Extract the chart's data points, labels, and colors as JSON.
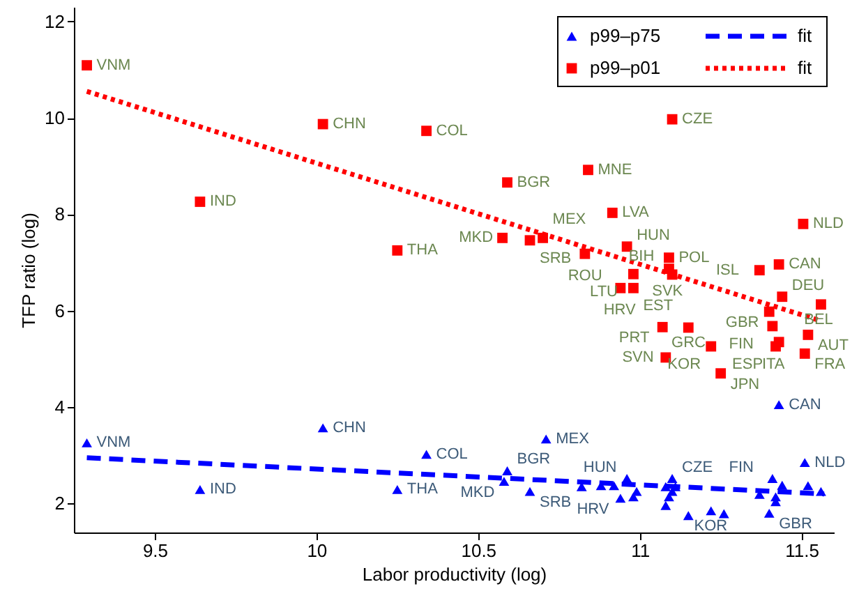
{
  "chart_data": {
    "type": "scatter",
    "xlabel": "Labor productivity (log)",
    "ylabel": "TFP ratio (log)",
    "xlim": [
      9.25,
      11.6
    ],
    "xticks": [
      9.5,
      10,
      10.5,
      11,
      11.5
    ],
    "ylim": [
      1.4,
      12.3
    ],
    "yticks": [
      2,
      4,
      6,
      8,
      10,
      12
    ],
    "grid": false,
    "legend": "top right",
    "series": [
      {
        "name": "p99–p75",
        "marker": "triangle",
        "color": "#0000ff",
        "x": [
          9.29,
          10.02,
          10.34,
          9.64,
          10.25,
          10.71,
          10.59,
          10.58,
          10.66,
          10.82,
          10.88,
          10.92,
          10.96,
          10.94,
          10.98,
          10.99,
          11.1,
          11.08,
          11.09,
          11.1,
          11.08,
          11.15,
          11.11,
          11.22,
          11.26,
          11.37,
          11.4,
          11.41,
          11.44,
          11.42,
          11.42,
          11.51,
          11.52,
          11.56,
          11.43
        ],
        "values": [
          3.26,
          3.57,
          3.02,
          2.29,
          2.29,
          3.34,
          2.68,
          2.46,
          2.25,
          2.35,
          2.37,
          2.37,
          2.52,
          2.11,
          2.14,
          2.25,
          2.52,
          2.35,
          2.14,
          2.25,
          1.96,
          1.75,
          2.35,
          1.85,
          1.79,
          2.19,
          1.8,
          2.52,
          2.38,
          2.14,
          2.04,
          2.85,
          2.37,
          2.25,
          4.05
        ]
      },
      {
        "name": "p99–p01",
        "marker": "square",
        "color": "#ff0000",
        "x": [
          9.29,
          10.02,
          10.34,
          9.64,
          10.25,
          10.59,
          10.84,
          10.915,
          11.505,
          10.575,
          10.66,
          10.7,
          10.83,
          10.96,
          11.09,
          11.09,
          11.1,
          10.98,
          10.94,
          10.98,
          11.37,
          11.43,
          11.44,
          11.56,
          11.4,
          11.41,
          11.52,
          11.43,
          11.42,
          11.51,
          11.07,
          11.15,
          11.22,
          11.08,
          11.25,
          11.1
        ],
        "values": [
          11.09,
          9.87,
          9.73,
          8.26,
          7.25,
          8.66,
          8.92,
          8.03,
          7.8,
          7.51,
          7.46,
          7.51,
          7.18,
          7.33,
          7.1,
          6.87,
          6.75,
          6.76,
          6.47,
          6.47,
          6.84,
          6.96,
          6.29,
          6.13,
          5.98,
          5.68,
          5.5,
          5.35,
          5.26,
          5.11,
          5.66,
          5.65,
          5.26,
          5.03,
          4.7,
          9.97
        ]
      },
      {
        "name": "fit",
        "type": "line",
        "line_style": "dashed",
        "color": "#0000ff",
        "x": [
          9.29,
          11.57
        ],
        "values": [
          2.95,
          2.2
        ]
      },
      {
        "name": "fit",
        "type": "line",
        "line_style": "dotted",
        "color": "#ff0000",
        "x": [
          9.29,
          11.55
        ],
        "values": [
          10.55,
          5.81
        ]
      }
    ],
    "annotations": [
      {
        "text": "VNM",
        "x": 9.29,
        "y": 3.26
      },
      {
        "text": "CHN",
        "x": 10.02,
        "y": 3.57
      },
      {
        "text": "COL",
        "x": 10.34,
        "y": 3.02
      },
      {
        "text": "IND",
        "x": 9.64,
        "y": 2.29
      },
      {
        "text": "THA",
        "x": 10.25,
        "y": 2.29
      },
      {
        "text": "MEX",
        "x": 10.71,
        "y": 3.34
      },
      {
        "text": "CAN",
        "x": 11.43,
        "y": 4.05
      },
      {
        "text": "NLD",
        "x": 11.51,
        "y": 2.85
      },
      {
        "text": "BGR",
        "x": 10.59,
        "y": 2.68
      },
      {
        "text": "MKD",
        "x": 10.58,
        "y": 2.46
      },
      {
        "text": "SRB",
        "x": 10.66,
        "y": 2.25
      },
      {
        "text": "HUN",
        "x": 10.96,
        "y": 2.52
      },
      {
        "text": "CZE",
        "x": 11.1,
        "y": 2.52
      },
      {
        "text": "FIN",
        "x": 11.41,
        "y": 2.52
      },
      {
        "text": "HRV",
        "x": 10.94,
        "y": 2.11
      },
      {
        "text": "KOR",
        "x": 11.22,
        "y": 1.85
      },
      {
        "text": "GBR",
        "x": 11.4,
        "y": 1.8
      },
      {
        "text": "VNM",
        "x": 9.29,
        "y": 11.09
      },
      {
        "text": "CHN",
        "x": 10.02,
        "y": 9.87
      },
      {
        "text": "COL",
        "x": 10.34,
        "y": 9.73
      },
      {
        "text": "IND",
        "x": 9.64,
        "y": 8.26
      },
      {
        "text": "THA",
        "x": 10.25,
        "y": 7.25
      },
      {
        "text": "CZE",
        "x": 11.1,
        "y": 9.97
      },
      {
        "text": "BGR",
        "x": 10.59,
        "y": 8.66
      },
      {
        "text": "MNE",
        "x": 10.84,
        "y": 8.92
      },
      {
        "text": "LVA",
        "x": 10.915,
        "y": 8.03
      },
      {
        "text": "NLD",
        "x": 11.505,
        "y": 7.8
      },
      {
        "text": "MKD",
        "x": 10.575,
        "y": 7.51
      },
      {
        "text": "SRB",
        "x": 10.66,
        "y": 7.46
      },
      {
        "text": "MEX",
        "x": 10.7,
        "y": 7.51
      },
      {
        "text": "ROU",
        "x": 10.83,
        "y": 7.18
      },
      {
        "text": "HUN",
        "x": 10.96,
        "y": 7.33
      },
      {
        "text": "POL",
        "x": 11.09,
        "y": 7.1
      },
      {
        "text": "SVK",
        "x": 11.09,
        "y": 6.87
      },
      {
        "text": "BIH",
        "x": 11.1,
        "y": 6.75
      },
      {
        "text": "LTU",
        "x": 10.98,
        "y": 6.76
      },
      {
        "text": "HRV",
        "x": 10.94,
        "y": 6.47
      },
      {
        "text": "EST",
        "x": 10.98,
        "y": 6.47
      },
      {
        "text": "ISL",
        "x": 11.37,
        "y": 6.84
      },
      {
        "text": "CAN",
        "x": 11.43,
        "y": 6.96
      },
      {
        "text": "DEU",
        "x": 11.44,
        "y": 6.29
      },
      {
        "text": "BEL",
        "x": 11.56,
        "y": 6.13
      },
      {
        "text": "GBR",
        "x": 11.4,
        "y": 5.98
      },
      {
        "text": "FIN",
        "x": 11.41,
        "y": 5.68
      },
      {
        "text": "AUT",
        "x": 11.52,
        "y": 5.5
      },
      {
        "text": "ITA",
        "x": 11.43,
        "y": 5.35
      },
      {
        "text": "ESP",
        "x": 11.42,
        "y": 5.26
      },
      {
        "text": "FRA",
        "x": 11.51,
        "y": 5.11
      },
      {
        "text": "PRT",
        "x": 11.07,
        "y": 5.66
      },
      {
        "text": "GRC",
        "x": 11.15,
        "y": 5.65
      },
      {
        "text": "KOR",
        "x": 11.22,
        "y": 5.26
      },
      {
        "text": "SVN",
        "x": 11.08,
        "y": 5.03
      },
      {
        "text": "JPN",
        "x": 11.25,
        "y": 4.7
      }
    ]
  }
}
